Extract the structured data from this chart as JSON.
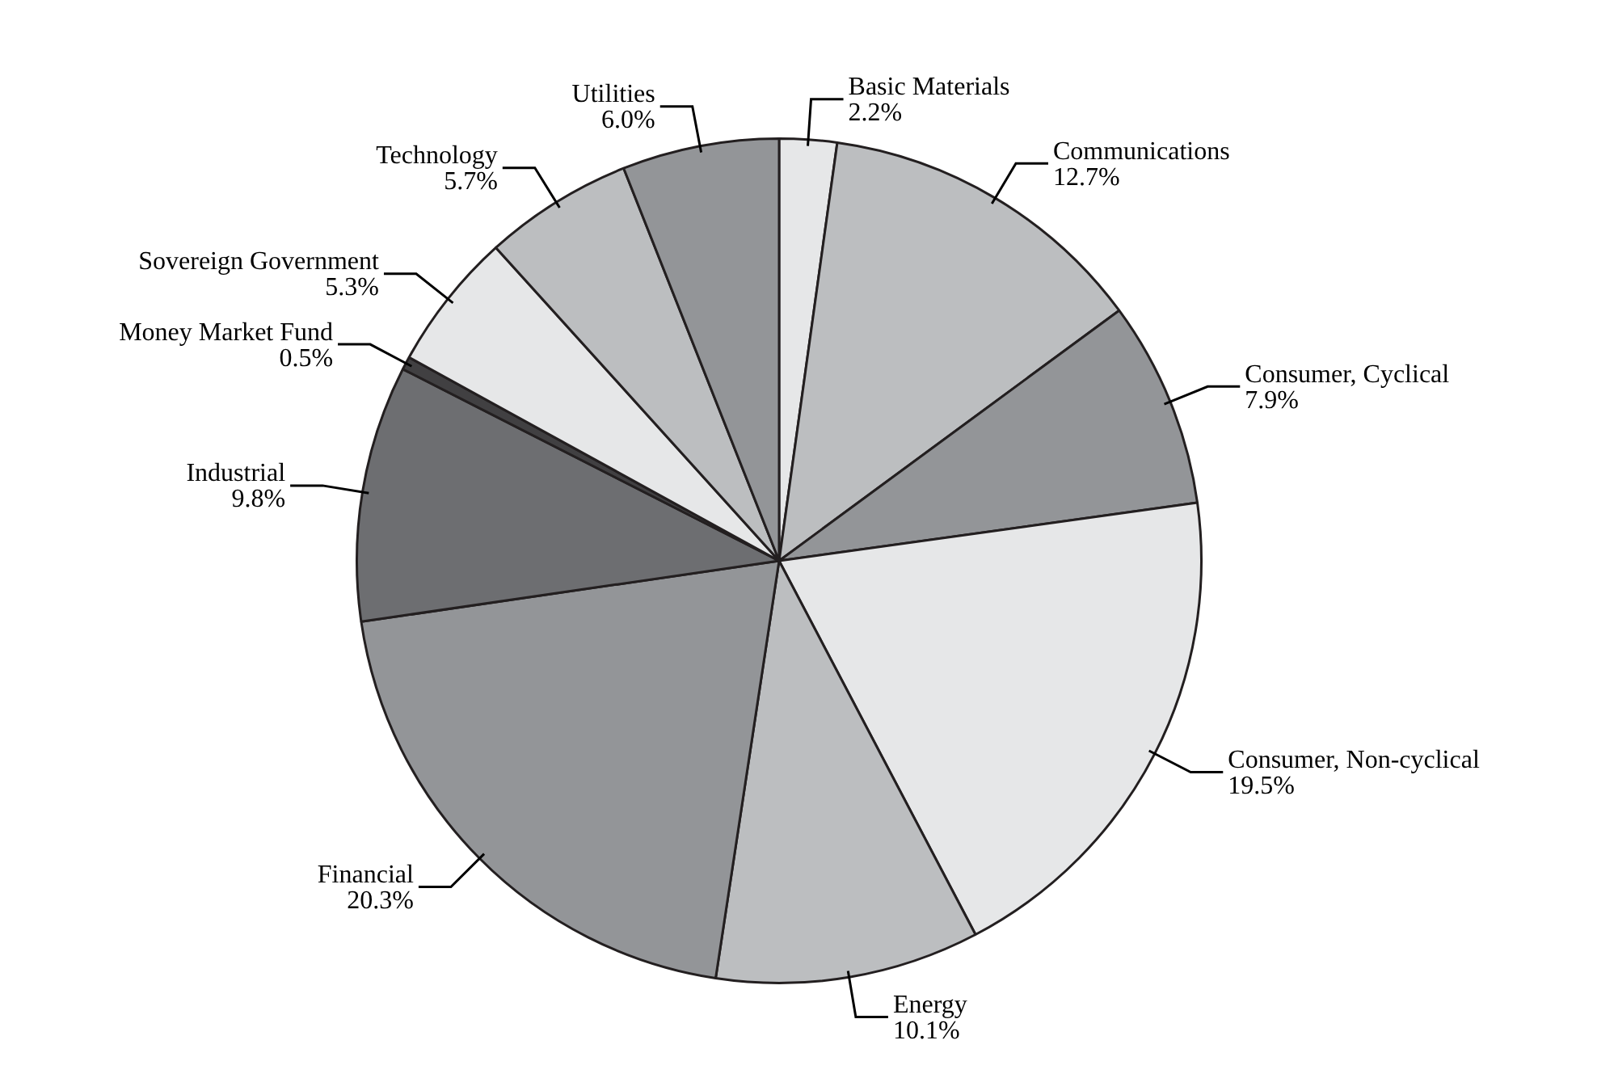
{
  "chart_data": {
    "type": "pie",
    "categories": [
      "Basic Materials",
      "Communications",
      "Consumer, Cyclical",
      "Consumer, Non-cyclical",
      "Energy",
      "Financial",
      "Industrial",
      "Money Market Fund",
      "Sovereign Government",
      "Technology",
      "Utilities"
    ],
    "values": [
      2.2,
      12.7,
      7.9,
      19.5,
      10.1,
      20.3,
      9.8,
      0.5,
      5.3,
      5.7,
      6.0
    ],
    "colors": [
      "#e6e7e8",
      "#bcbec0",
      "#939598",
      "#e6e7e8",
      "#bcbec0",
      "#939598",
      "#6d6e71",
      "#414042",
      "#e6e7e8",
      "#bcbec0",
      "#939598"
    ],
    "value_labels": [
      "2.2%",
      "12.7%",
      "7.9%",
      "19.5%",
      "10.1%",
      "20.3%",
      "9.8%",
      "0.5%",
      "5.3%",
      "5.7%",
      "6.0%"
    ]
  }
}
